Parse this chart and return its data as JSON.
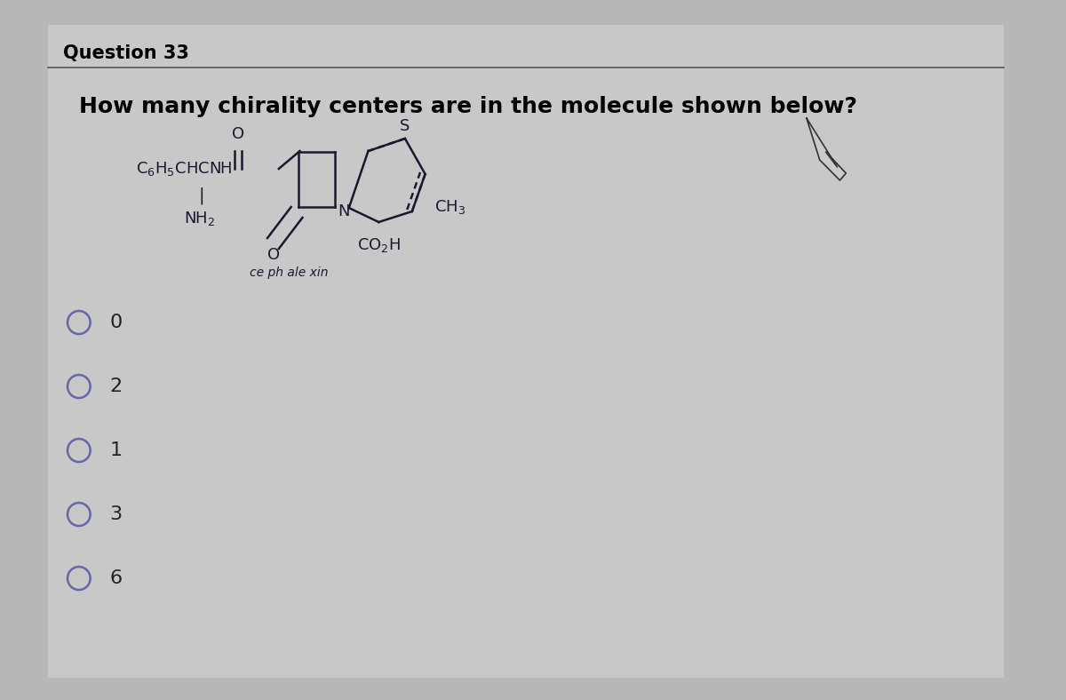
{
  "title": "Question 33",
  "question": "How many chirality centers are in the molecule shown below?",
  "bg_color": "#b8b8b8",
  "content_bg_color": "#c0c0c0",
  "answer_choices": [
    "0",
    "2",
    "1",
    "3",
    "6"
  ],
  "molecule_label": "ce ph ale xin",
  "radio_color": "#6666aa",
  "choice_text_color": "#222222",
  "title_fontsize": 15,
  "question_fontsize": 18,
  "molecule_fontsize": 13,
  "choice_fontsize": 16,
  "label_fontsize": 10,
  "mol_color": "#1a1a2e"
}
